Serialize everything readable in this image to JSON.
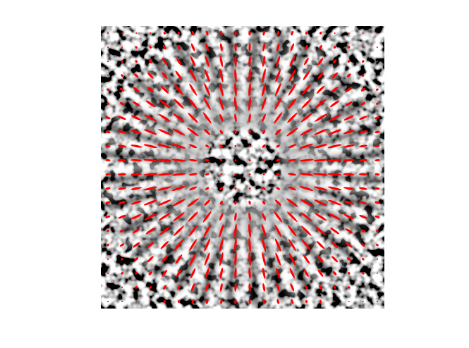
{
  "chart_data": {
    "type": "ellipse_field",
    "color": "#ff0000",
    "tick_labels": false,
    "xlim": [
      0,
      400
    ],
    "ylim": [
      0,
      400
    ],
    "x": [
      10,
      30,
      50,
      70,
      90,
      110,
      130,
      150,
      170,
      190,
      210,
      230,
      250,
      270,
      290,
      310,
      330,
      350,
      370,
      390
    ],
    "y": [
      10,
      30,
      50,
      70,
      90,
      110,
      130,
      150,
      170,
      190,
      210,
      230,
      250,
      270,
      290,
      310,
      330,
      350,
      370,
      390
    ],
    "angle": [
      [
        45,
        48,
        52,
        56,
        60,
        65,
        70,
        75,
        81,
        87,
        93,
        99,
        105,
        110,
        115,
        120,
        124,
        128,
        132,
        135
      ],
      [
        42,
        45,
        49,
        53,
        57,
        62,
        68,
        74,
        80,
        87,
        93,
        100,
        106,
        112,
        118,
        123,
        127,
        131,
        135,
        138
      ],
      [
        38,
        41,
        45,
        49,
        54,
        59,
        65,
        72,
        79,
        86,
        94,
        101,
        108,
        115,
        121,
        126,
        131,
        135,
        139,
        142
      ],
      [
        34,
        37,
        41,
        45,
        50,
        55,
        62,
        69,
        77,
        86,
        94,
        103,
        111,
        118,
        125,
        130,
        135,
        139,
        143,
        146
      ],
      [
        30,
        33,
        36,
        40,
        45,
        51,
        58,
        66,
        75,
        85,
        95,
        105,
        114,
        122,
        129,
        135,
        140,
        144,
        147,
        150
      ],
      [
        25,
        28,
        31,
        35,
        39,
        45,
        52,
        61,
        72,
        84,
        96,
        108,
        119,
        128,
        135,
        141,
        145,
        149,
        152,
        155
      ],
      [
        20,
        22,
        25,
        28,
        32,
        38,
        45,
        54,
        67,
        82,
        98,
        113,
        126,
        135,
        142,
        148,
        152,
        155,
        158,
        160
      ],
      [
        15,
        16,
        18,
        21,
        24,
        29,
        36,
        45,
        59,
        79,
        101,
        121,
        135,
        144,
        151,
        156,
        159,
        162,
        164,
        165
      ],
      [
        9,
        10,
        11,
        13,
        15,
        18,
        23,
        31,
        45,
        72,
        108,
        135,
        149,
        157,
        162,
        165,
        167,
        169,
        170,
        171
      ],
      [
        3,
        3,
        4,
        4,
        5,
        6,
        8,
        11,
        18,
        45,
        135,
        162,
        169,
        172,
        174,
        175,
        176,
        176,
        177,
        177
      ],
      [
        177,
        177,
        176,
        176,
        175,
        174,
        172,
        169,
        162,
        135,
        45,
        18,
        11,
        8,
        6,
        5,
        4,
        4,
        3,
        3
      ],
      [
        171,
        170,
        169,
        167,
        165,
        162,
        157,
        149,
        135,
        108,
        72,
        45,
        31,
        23,
        18,
        15,
        13,
        11,
        10,
        9
      ],
      [
        165,
        164,
        162,
        159,
        156,
        151,
        144,
        135,
        121,
        101,
        79,
        59,
        45,
        36,
        29,
        24,
        21,
        18,
        16,
        15
      ],
      [
        160,
        158,
        155,
        152,
        148,
        142,
        135,
        126,
        113,
        98,
        82,
        67,
        54,
        45,
        38,
        32,
        28,
        25,
        22,
        20
      ],
      [
        155,
        152,
        149,
        145,
        141,
        135,
        128,
        119,
        108,
        96,
        84,
        72,
        61,
        52,
        45,
        39,
        35,
        31,
        28,
        25
      ],
      [
        150,
        147,
        144,
        140,
        135,
        129,
        122,
        114,
        105,
        95,
        85,
        75,
        66,
        58,
        51,
        45,
        40,
        36,
        33,
        30
      ],
      [
        146,
        143,
        139,
        135,
        130,
        125,
        118,
        111,
        103,
        94,
        86,
        77,
        69,
        62,
        55,
        50,
        45,
        41,
        37,
        34
      ],
      [
        142,
        139,
        135,
        131,
        126,
        121,
        115,
        108,
        101,
        94,
        86,
        79,
        72,
        65,
        59,
        54,
        49,
        45,
        41,
        38
      ],
      [
        138,
        135,
        131,
        127,
        123,
        118,
        112,
        106,
        100,
        93,
        87,
        80,
        74,
        68,
        62,
        57,
        53,
        49,
        45,
        42
      ],
      [
        135,
        132,
        128,
        124,
        120,
        115,
        110,
        105,
        99,
        93,
        87,
        81,
        75,
        70,
        65,
        60,
        56,
        52,
        48,
        45
      ]
    ],
    "length": [
      [
        2,
        2,
        2,
        2,
        4,
        4,
        7,
        7,
        7,
        7,
        7,
        7,
        7,
        7,
        4,
        4,
        2,
        2,
        2,
        2
      ],
      [
        2,
        2,
        4,
        4,
        7,
        7,
        12,
        12,
        12,
        12,
        12,
        12,
        12,
        12,
        7,
        7,
        4,
        4,
        2,
        2
      ],
      [
        2,
        4,
        4,
        7,
        12,
        12,
        16,
        16,
        16,
        16,
        16,
        16,
        16,
        16,
        12,
        12,
        7,
        4,
        4,
        2
      ],
      [
        2,
        4,
        7,
        12,
        12,
        16,
        20,
        20,
        20,
        20,
        20,
        20,
        20,
        20,
        16,
        12,
        12,
        7,
        4,
        2
      ],
      [
        4,
        7,
        12,
        12,
        16,
        20,
        20,
        20,
        20,
        20,
        20,
        20,
        20,
        20,
        20,
        16,
        12,
        12,
        7,
        4
      ],
      [
        4,
        7,
        12,
        16,
        20,
        20,
        20,
        20,
        20,
        20,
        20,
        20,
        20,
        20,
        20,
        20,
        16,
        12,
        7,
        4
      ],
      [
        7,
        12,
        16,
        20,
        20,
        20,
        20,
        20,
        12,
        12,
        12,
        12,
        20,
        20,
        20,
        20,
        20,
        16,
        12,
        7
      ],
      [
        7,
        12,
        16,
        20,
        20,
        20,
        20,
        12,
        6,
        6,
        6,
        6,
        12,
        20,
        20,
        20,
        20,
        16,
        12,
        7
      ],
      [
        7,
        12,
        16,
        20,
        20,
        20,
        12,
        6,
        6,
        3,
        3,
        6,
        6,
        12,
        20,
        20,
        20,
        16,
        12,
        7
      ],
      [
        7,
        12,
        16,
        20,
        20,
        20,
        12,
        6,
        3,
        3,
        3,
        3,
        6,
        12,
        20,
        20,
        20,
        16,
        12,
        7
      ],
      [
        7,
        12,
        16,
        20,
        20,
        20,
        12,
        6,
        3,
        3,
        3,
        3,
        6,
        12,
        20,
        20,
        20,
        16,
        12,
        7
      ],
      [
        7,
        12,
        16,
        20,
        20,
        20,
        12,
        6,
        6,
        3,
        3,
        6,
        6,
        12,
        20,
        20,
        20,
        16,
        12,
        7
      ],
      [
        7,
        12,
        16,
        20,
        20,
        20,
        20,
        12,
        6,
        6,
        6,
        6,
        12,
        20,
        20,
        20,
        20,
        16,
        12,
        7
      ],
      [
        7,
        12,
        16,
        20,
        20,
        20,
        20,
        20,
        12,
        12,
        12,
        12,
        20,
        20,
        20,
        20,
        20,
        16,
        12,
        7
      ],
      [
        4,
        7,
        12,
        16,
        20,
        20,
        20,
        20,
        20,
        20,
        20,
        20,
        20,
        20,
        20,
        20,
        16,
        12,
        7,
        4
      ],
      [
        4,
        7,
        12,
        12,
        16,
        20,
        20,
        20,
        20,
        20,
        20,
        20,
        20,
        20,
        20,
        16,
        12,
        12,
        7,
        4
      ],
      [
        2,
        4,
        7,
        12,
        12,
        16,
        20,
        20,
        20,
        20,
        20,
        20,
        20,
        20,
        16,
        12,
        12,
        7,
        4,
        2
      ],
      [
        2,
        4,
        4,
        7,
        12,
        12,
        16,
        16,
        16,
        16,
        16,
        16,
        16,
        16,
        12,
        12,
        7,
        4,
        4,
        2
      ],
      [
        2,
        2,
        4,
        4,
        7,
        7,
        12,
        12,
        12,
        12,
        12,
        12,
        12,
        12,
        7,
        7,
        4,
        4,
        2,
        2
      ],
      [
        2,
        2,
        2,
        2,
        4,
        4,
        7,
        7,
        7,
        7,
        7,
        7,
        7,
        7,
        4,
        4,
        2,
        2,
        2,
        2
      ]
    ]
  }
}
